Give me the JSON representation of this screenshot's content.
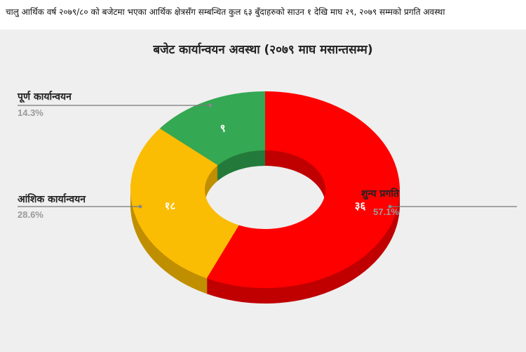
{
  "caption": "चालु आर्थिक वर्ष २०७९/८० को बजेटमा भएका आर्थिक क्षेत्रसँग सम्बन्धित कुल ६३ बुँदाहरुको साउन १ देखि माघ २९, २०७९ सम्मको प्रगति अवस्था",
  "chart_data": {
    "type": "pie",
    "variant": "3d-donut",
    "title": "बजेट कार्यान्वयन अवस्था (२०७९ माघ मसान्तसम्म)",
    "slices": [
      {
        "label": "शुन्य प्रगति",
        "value": 36,
        "value_label": "३६",
        "percent": "57.1%",
        "color": "#ff0000",
        "side_color": "#c00000"
      },
      {
        "label": "आंशिक कार्यान्वयन",
        "value": 18,
        "value_label": "१८",
        "percent": "28.6%",
        "color": "#fbbc04",
        "side_color": "#c08f00"
      },
      {
        "label": "पूर्ण कार्यान्वयन",
        "value": 9,
        "value_label": "९",
        "percent": "14.3%",
        "color": "#34a853",
        "side_color": "#237a3a"
      }
    ],
    "start": "top",
    "direction": "clockwise"
  }
}
